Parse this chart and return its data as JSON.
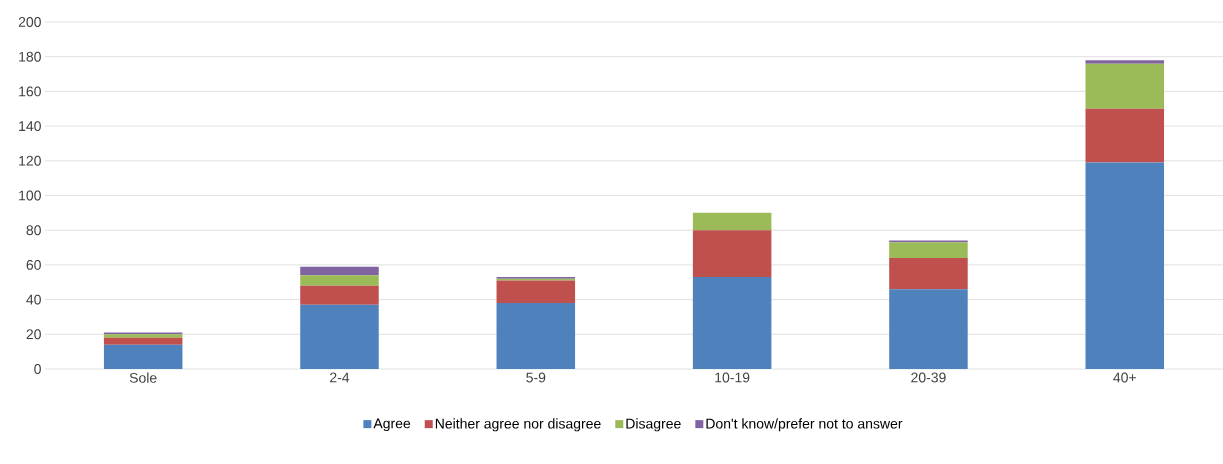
{
  "chart_data": {
    "type": "bar",
    "stacked": true,
    "categories": [
      "Sole",
      "2-4",
      "5-9",
      "10-19",
      "20-39",
      "40+"
    ],
    "series": [
      {
        "name": "Agree",
        "color": "#4f81bd",
        "values": [
          14,
          37,
          38,
          53,
          46,
          119
        ]
      },
      {
        "name": "Neither agree nor disagree",
        "color": "#c0504d",
        "values": [
          4,
          11,
          13,
          27,
          18,
          31
        ]
      },
      {
        "name": "Disagree",
        "color": "#9bbb59",
        "values": [
          2,
          6,
          1,
          10,
          9,
          26
        ]
      },
      {
        "name": "Don't know/prefer not to answer",
        "color": "#8064a2",
        "values": [
          1,
          5,
          1,
          0,
          1,
          2
        ]
      }
    ],
    "ylim": [
      0,
      200
    ],
    "yticks": [
      0,
      20,
      40,
      60,
      80,
      100,
      120,
      140,
      160,
      180,
      200
    ],
    "grid": "y",
    "legend": "bottom"
  }
}
